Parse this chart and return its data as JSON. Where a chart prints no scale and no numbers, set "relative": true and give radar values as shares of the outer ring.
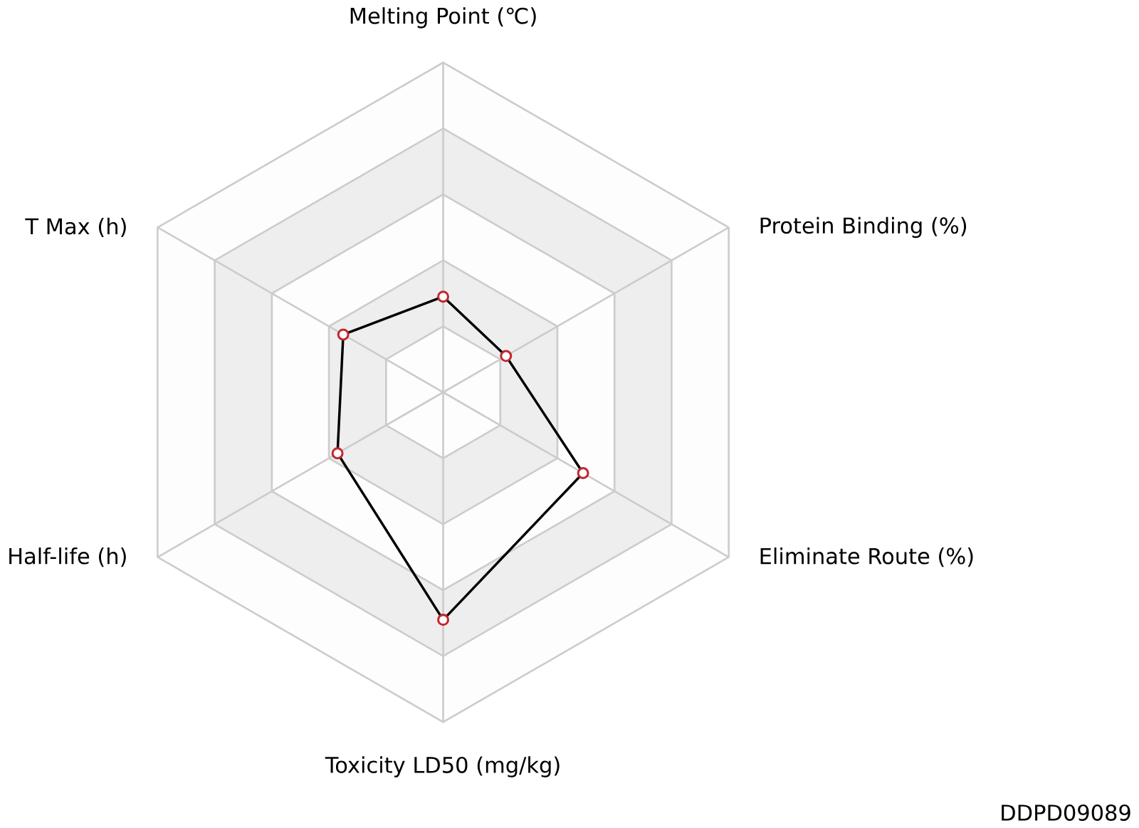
{
  "chart_data": {
    "type": "radar",
    "relative": true,
    "categories": [
      "Melting Point (℃)",
      "Protein Binding (%)",
      "Eliminate Route (%)",
      "Toxicity LD50 (mg/kg)",
      "Half-life (h)",
      "T Max (h)"
    ],
    "series": [
      {
        "color": "#000000",
        "values": [
          0.29,
          0.22,
          0.49,
          0.69,
          0.37,
          0.35
        ]
      }
    ],
    "marker": "circle",
    "line_style": "solid",
    "annotations": [
      "DDPD09089"
    ]
  }
}
